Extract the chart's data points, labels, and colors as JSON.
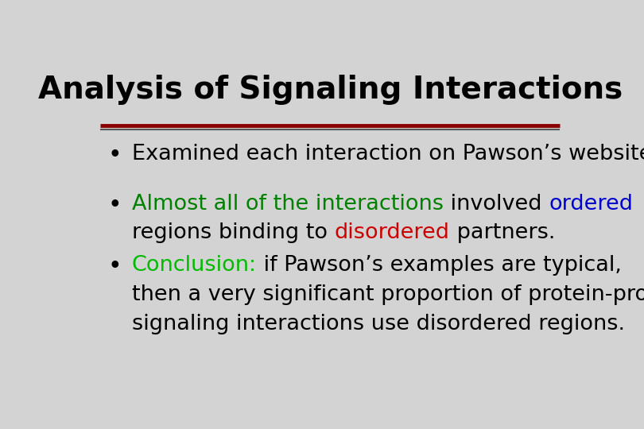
{
  "title": "Analysis of Signaling Interactions",
  "title_fontsize": 28,
  "title_color": "#000000",
  "background_color": "#d3d3d3",
  "separator_color1": "#8b0000",
  "separator_color2": "#555555",
  "bullet_color": "#000000",
  "bullet1_text": "Examined each interaction on Pawson’s website.",
  "bullet1_color": "#000000",
  "bullet2_line1_parts": [
    {
      "text": "Almost all of the interactions",
      "color": "#008000"
    },
    {
      "text": " involved ",
      "color": "#000000"
    },
    {
      "text": "ordered",
      "color": "#0000cd"
    }
  ],
  "bullet2_line2_parts": [
    {
      "text": "regions binding to ",
      "color": "#000000"
    },
    {
      "text": "disordered",
      "color": "#cc0000"
    },
    {
      "text": " partners.",
      "color": "#000000"
    }
  ],
  "bullet3_line1_parts": [
    {
      "text": "Conclusion:",
      "color": "#00bb00"
    },
    {
      "text": " if Pawson’s examples are typical,",
      "color": "#000000"
    }
  ],
  "bullet3_line2": "then a very significant proportion of protein-protein",
  "bullet3_line3": "signaling interactions use disordered regions.",
  "bullet3_color": "#000000",
  "font_family": "DejaVu Sans",
  "text_fontsize": 19.5
}
